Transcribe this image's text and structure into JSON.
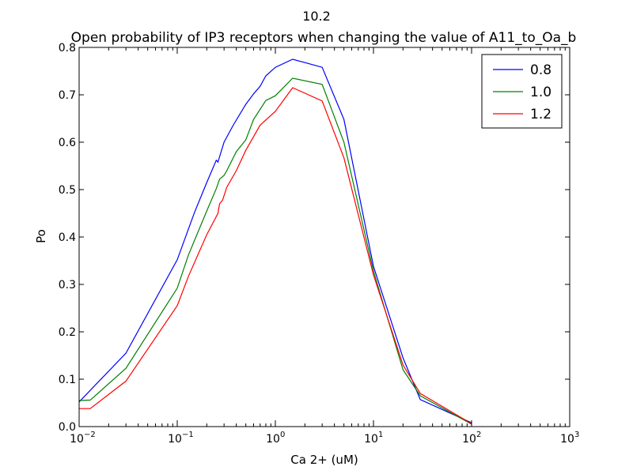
{
  "chart_data": {
    "type": "line",
    "suptitle": "10.2",
    "title": "Open probability of IP3 receptors when changing the value of A11_to_Oa_b",
    "xlabel": "Ca 2+ (uM)",
    "ylabel": "Po",
    "xscale": "log",
    "xlim": [
      0.01,
      1000
    ],
    "ylim": [
      0.0,
      0.8
    ],
    "xticks": [
      {
        "value": 0.01,
        "base": "10",
        "exp": "−2"
      },
      {
        "value": 0.1,
        "base": "10",
        "exp": "−1"
      },
      {
        "value": 1,
        "base": "10",
        "exp": "0"
      },
      {
        "value": 10,
        "base": "10",
        "exp": "1"
      },
      {
        "value": 100,
        "base": "10",
        "exp": "2"
      },
      {
        "value": 1000,
        "base": "10",
        "exp": "3"
      }
    ],
    "yticks": [
      "0.0",
      "0.1",
      "0.2",
      "0.3",
      "0.4",
      "0.5",
      "0.6",
      "0.7",
      "0.8"
    ],
    "grid": false,
    "legend_position": "top-right",
    "series": [
      {
        "name": "0.8",
        "color": "#0000ff",
        "points": [
          [
            0.01,
            0.052
          ],
          [
            0.03,
            0.155
          ],
          [
            0.1,
            0.352
          ],
          [
            0.15,
            0.452
          ],
          [
            0.2,
            0.515
          ],
          [
            0.25,
            0.562
          ],
          [
            0.26,
            0.558
          ],
          [
            0.3,
            0.6
          ],
          [
            0.37,
            0.635
          ],
          [
            0.5,
            0.68
          ],
          [
            0.6,
            0.702
          ],
          [
            0.7,
            0.718
          ],
          [
            0.8,
            0.74
          ],
          [
            1.0,
            0.758
          ],
          [
            1.5,
            0.775
          ],
          [
            3.0,
            0.758
          ],
          [
            5.0,
            0.648
          ],
          [
            10,
            0.338
          ],
          [
            20,
            0.145
          ],
          [
            30,
            0.057
          ],
          [
            100,
            0.008
          ]
        ]
      },
      {
        "name": "1.0",
        "color": "#008000",
        "points": [
          [
            0.01,
            0.055
          ],
          [
            0.013,
            0.056
          ],
          [
            0.03,
            0.123
          ],
          [
            0.1,
            0.292
          ],
          [
            0.13,
            0.362
          ],
          [
            0.2,
            0.455
          ],
          [
            0.25,
            0.502
          ],
          [
            0.27,
            0.522
          ],
          [
            0.3,
            0.53
          ],
          [
            0.32,
            0.54
          ],
          [
            0.4,
            0.58
          ],
          [
            0.5,
            0.605
          ],
          [
            0.6,
            0.648
          ],
          [
            0.8,
            0.688
          ],
          [
            1.0,
            0.698
          ],
          [
            1.5,
            0.735
          ],
          [
            3.0,
            0.722
          ],
          [
            5.0,
            0.6
          ],
          [
            10,
            0.328
          ],
          [
            20,
            0.12
          ],
          [
            30,
            0.065
          ],
          [
            100,
            0.005
          ]
        ]
      },
      {
        "name": "1.2",
        "color": "#ff0000",
        "points": [
          [
            0.01,
            0.038
          ],
          [
            0.013,
            0.038
          ],
          [
            0.03,
            0.096
          ],
          [
            0.1,
            0.255
          ],
          [
            0.13,
            0.317
          ],
          [
            0.2,
            0.405
          ],
          [
            0.26,
            0.45
          ],
          [
            0.27,
            0.47
          ],
          [
            0.29,
            0.478
          ],
          [
            0.32,
            0.505
          ],
          [
            0.4,
            0.54
          ],
          [
            0.5,
            0.583
          ],
          [
            0.7,
            0.636
          ],
          [
            1.0,
            0.665
          ],
          [
            1.5,
            0.715
          ],
          [
            3.0,
            0.687
          ],
          [
            5.0,
            0.567
          ],
          [
            10,
            0.32
          ],
          [
            20,
            0.13
          ],
          [
            30,
            0.07
          ],
          [
            100,
            0.006
          ]
        ]
      }
    ]
  }
}
